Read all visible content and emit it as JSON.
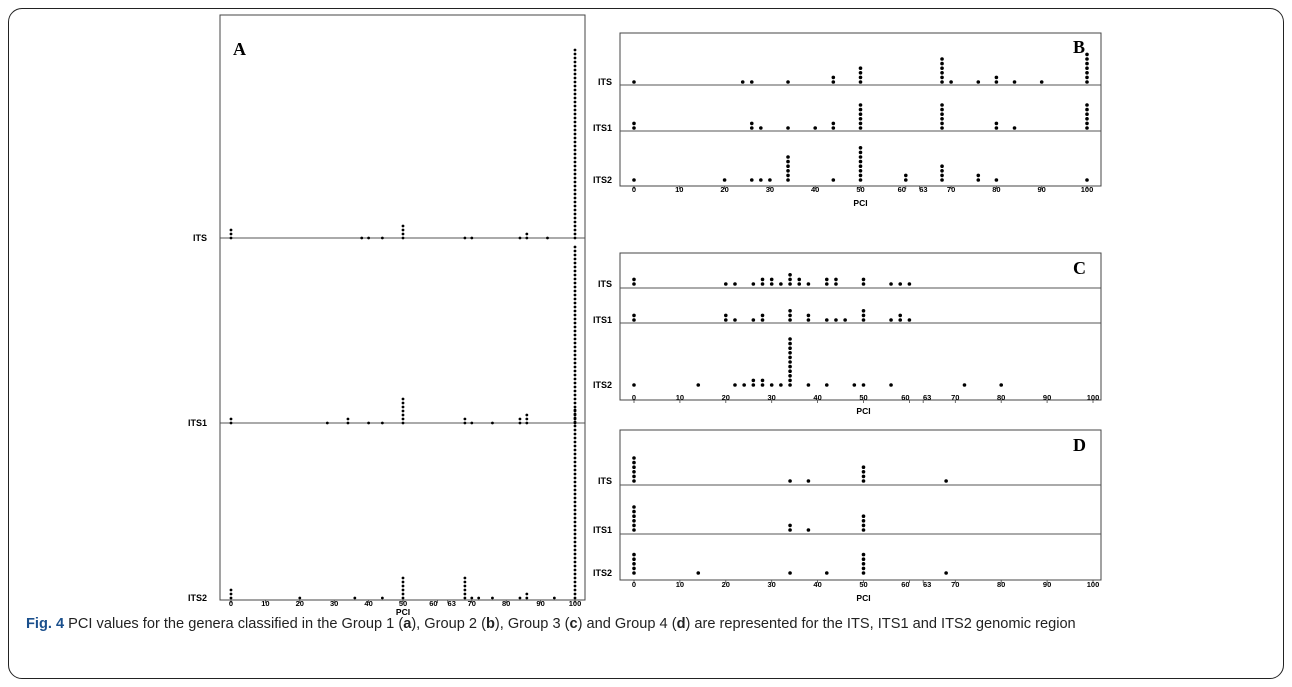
{
  "figure": {
    "caption_label": "Fig. 4",
    "caption_parts": [
      " PCI values for the genera classified in the Group 1 (",
      "a",
      "), Group 2 (",
      "b",
      "), Group 3 (",
      "c",
      ") and Group 4 (",
      "d",
      ") are represented for the ITS, ITS1 and ITS2 genomic region"
    ]
  },
  "chart_data": [
    {
      "panel": "A",
      "type": "scatter",
      "subtype": "dot plot",
      "xlabel": "PCI",
      "xlim": [
        0,
        100
      ],
      "xticks": [
        0,
        10,
        20,
        30,
        40,
        50,
        60,
        63,
        70,
        80,
        90,
        100
      ],
      "rows": [
        {
          "name": "ITS",
          "points": [
            [
              0,
              3
            ],
            [
              38,
              1
            ],
            [
              40,
              1
            ],
            [
              44,
              1
            ],
            [
              50,
              4
            ],
            [
              68,
              1
            ],
            [
              70,
              1
            ],
            [
              84,
              1
            ],
            [
              86,
              2
            ],
            [
              92,
              1
            ],
            [
              100,
              48
            ]
          ]
        },
        {
          "name": "ITS1",
          "points": [
            [
              0,
              2
            ],
            [
              28,
              1
            ],
            [
              34,
              2
            ],
            [
              40,
              1
            ],
            [
              44,
              1
            ],
            [
              50,
              7
            ],
            [
              68,
              2
            ],
            [
              70,
              1
            ],
            [
              76,
              1
            ],
            [
              84,
              2
            ],
            [
              86,
              3
            ],
            [
              100,
              45
            ]
          ]
        },
        {
          "name": "ITS2",
          "points": [
            [
              0,
              3
            ],
            [
              20,
              1
            ],
            [
              36,
              1
            ],
            [
              44,
              1
            ],
            [
              50,
              6
            ],
            [
              68,
              6
            ],
            [
              70,
              1
            ],
            [
              72,
              1
            ],
            [
              76,
              1
            ],
            [
              84,
              1
            ],
            [
              86,
              2
            ],
            [
              94,
              1
            ],
            [
              100,
              48
            ]
          ]
        }
      ]
    },
    {
      "panel": "B",
      "type": "scatter",
      "subtype": "dot plot",
      "xlabel": "PCI",
      "xlim": [
        0,
        100
      ],
      "xticks": [
        0,
        10,
        20,
        30,
        40,
        50,
        60,
        63,
        70,
        80,
        90,
        100
      ],
      "rows": [
        {
          "name": "ITS",
          "points": [
            [
              0,
              1
            ],
            [
              24,
              1
            ],
            [
              26,
              1
            ],
            [
              34,
              1
            ],
            [
              44,
              2
            ],
            [
              50,
              4
            ],
            [
              68,
              6
            ],
            [
              70,
              1
            ],
            [
              76,
              1
            ],
            [
              80,
              2
            ],
            [
              84,
              1
            ],
            [
              90,
              1
            ],
            [
              100,
              7
            ]
          ]
        },
        {
          "name": "ITS1",
          "points": [
            [
              0,
              2
            ],
            [
              26,
              2
            ],
            [
              28,
              1
            ],
            [
              34,
              1
            ],
            [
              40,
              1
            ],
            [
              44,
              2
            ],
            [
              50,
              6
            ],
            [
              68,
              6
            ],
            [
              80,
              2
            ],
            [
              84,
              1
            ],
            [
              100,
              6
            ]
          ]
        },
        {
          "name": "ITS2",
          "points": [
            [
              0,
              1
            ],
            [
              20,
              1
            ],
            [
              26,
              1
            ],
            [
              28,
              1
            ],
            [
              30,
              1
            ],
            [
              34,
              6
            ],
            [
              44,
              1
            ],
            [
              50,
              8
            ],
            [
              60,
              2
            ],
            [
              68,
              4
            ],
            [
              76,
              2
            ],
            [
              80,
              1
            ],
            [
              100,
              1
            ]
          ]
        }
      ]
    },
    {
      "panel": "C",
      "type": "scatter",
      "subtype": "dot plot",
      "xlabel": "PCI",
      "xlim": [
        0,
        100
      ],
      "xticks": [
        0,
        10,
        20,
        30,
        40,
        50,
        60,
        63,
        70,
        80,
        90,
        100
      ],
      "rows": [
        {
          "name": "ITS",
          "points": [
            [
              0,
              2
            ],
            [
              20,
              1
            ],
            [
              22,
              1
            ],
            [
              26,
              1
            ],
            [
              28,
              2
            ],
            [
              30,
              2
            ],
            [
              32,
              1
            ],
            [
              34,
              3
            ],
            [
              36,
              2
            ],
            [
              38,
              1
            ],
            [
              42,
              2
            ],
            [
              44,
              2
            ],
            [
              50,
              2
            ],
            [
              56,
              1
            ],
            [
              58,
              1
            ],
            [
              60,
              1
            ]
          ]
        },
        {
          "name": "ITS1",
          "points": [
            [
              0,
              2
            ],
            [
              20,
              2
            ],
            [
              22,
              1
            ],
            [
              26,
              1
            ],
            [
              28,
              2
            ],
            [
              34,
              3
            ],
            [
              38,
              2
            ],
            [
              42,
              1
            ],
            [
              44,
              1
            ],
            [
              46,
              1
            ],
            [
              50,
              3
            ],
            [
              56,
              1
            ],
            [
              58,
              2
            ],
            [
              60,
              1
            ]
          ]
        },
        {
          "name": "ITS2",
          "points": [
            [
              0,
              1
            ],
            [
              14,
              1
            ],
            [
              22,
              1
            ],
            [
              24,
              1
            ],
            [
              26,
              2
            ],
            [
              28,
              2
            ],
            [
              30,
              1
            ],
            [
              32,
              1
            ],
            [
              34,
              11
            ],
            [
              38,
              1
            ],
            [
              42,
              1
            ],
            [
              48,
              1
            ],
            [
              50,
              1
            ],
            [
              56,
              1
            ],
            [
              72,
              1
            ],
            [
              80,
              1
            ]
          ]
        }
      ]
    },
    {
      "panel": "D",
      "type": "scatter",
      "subtype": "dot plot",
      "xlabel": "PCI",
      "xlim": [
        0,
        100
      ],
      "xticks": [
        0,
        10,
        20,
        30,
        40,
        50,
        60,
        63,
        70,
        80,
        90,
        100
      ],
      "rows": [
        {
          "name": "ITS",
          "points": [
            [
              0,
              6
            ],
            [
              34,
              1
            ],
            [
              38,
              1
            ],
            [
              50,
              4
            ],
            [
              68,
              1
            ]
          ]
        },
        {
          "name": "ITS1",
          "points": [
            [
              0,
              6
            ],
            [
              34,
              2
            ],
            [
              38,
              1
            ],
            [
              50,
              4
            ]
          ]
        },
        {
          "name": "ITS2",
          "points": [
            [
              0,
              5
            ],
            [
              14,
              1
            ],
            [
              34,
              1
            ],
            [
              42,
              1
            ],
            [
              50,
              5
            ],
            [
              68,
              1
            ]
          ]
        }
      ]
    }
  ]
}
